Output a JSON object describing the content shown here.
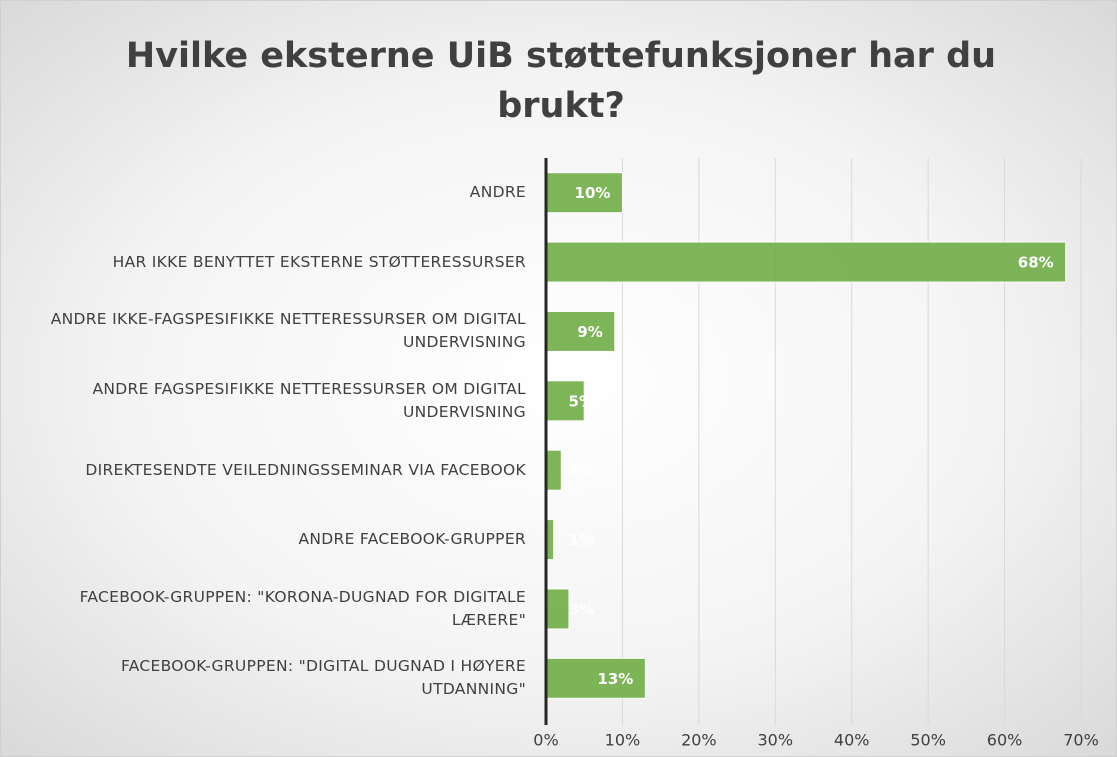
{
  "chart_data": {
    "type": "bar",
    "title": "Hvilke eksterne UiB støttefunksjoner har du brukt?",
    "categories": [
      "ANDRE",
      "HAR IKKE BENYTTET EKSTERNE STØTTERESSURSER",
      "ANDRE IKKE-FAGSPESIFIKKE NETTERESSURSER OM DIGITAL UNDERVISNING",
      "ANDRE FAGSPESIFIKKE NETTERESSURSER OM DIGITAL UNDERVISNING",
      "DIREKTESENDTE VEILEDNINGSSEMINAR VIA FACEBOOK",
      "ANDRE FACEBOOK-GRUPPER",
      "FACEBOOK-GRUPPEN: \"KORONA-DUGNAD FOR DIGITALE LÆRERE\"",
      "FACEBOOK-GRUPPEN: \"DIGITAL DUGNAD I HØYERE UTDANNING\""
    ],
    "values": [
      10,
      68,
      9,
      5,
      2,
      1,
      3,
      13
    ],
    "value_labels": [
      "10%",
      "68%",
      "9%",
      "5%",
      "2%",
      "1%",
      "3%",
      "13%"
    ],
    "color": "#70ad47",
    "xlim": [
      0,
      70
    ],
    "xticks": [
      {
        "value": 0,
        "label": "0%"
      },
      {
        "value": 10,
        "label": "10%"
      },
      {
        "value": 20,
        "label": "20%"
      },
      {
        "value": 30,
        "label": "30%"
      },
      {
        "value": 40,
        "label": "40%"
      },
      {
        "value": 50,
        "label": "50%"
      },
      {
        "value": 60,
        "label": "60%"
      },
      {
        "value": 70,
        "label": "70%"
      }
    ],
    "grid": true
  }
}
